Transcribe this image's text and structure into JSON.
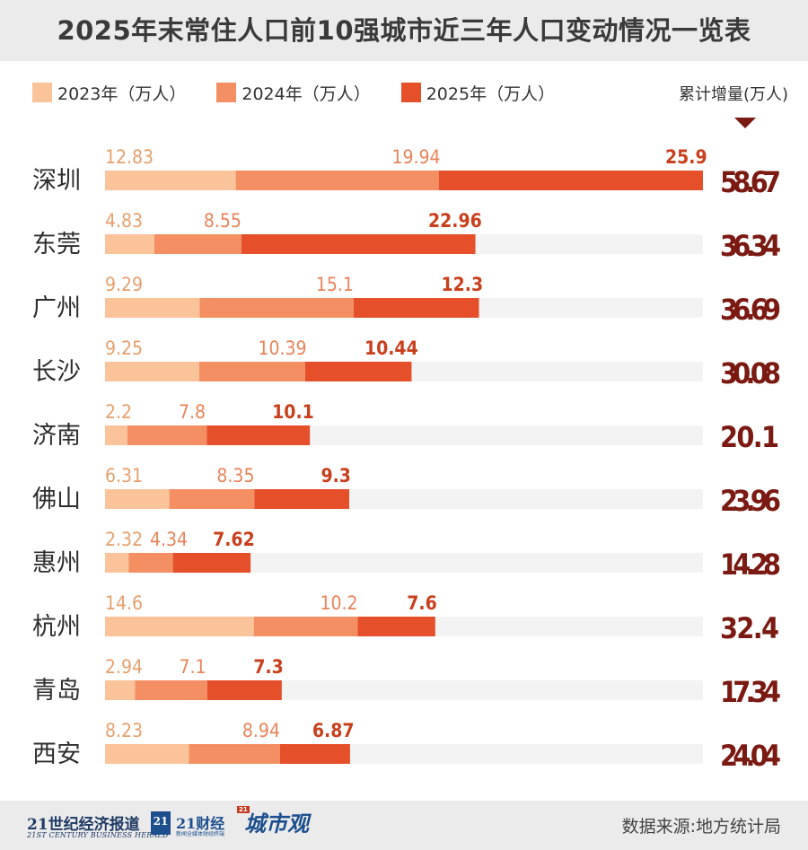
{
  "title": "2025年末常住人口前10强城市近三年人口变动情况一览表",
  "legend": [
    {
      "label": "2023年（万人）",
      "color": "#fbc39a"
    },
    {
      "label": "2024年（万人）",
      "color": "#f48f63"
    },
    {
      "label": "2025年（万人）",
      "color": "#e54f2a"
    }
  ],
  "cumulative_label": "累计增量(万人)",
  "colors": {
    "y2023": "#fbc39a",
    "y2024": "#f48f63",
    "y2025": "#e54f2a",
    "track": "#f3f3f3",
    "total": "#7a1a12",
    "label2023": "#e6a06e",
    "label2024": "#e8845a",
    "label2025": "#c8401e",
    "city": "#2e2e2e"
  },
  "chart_data": {
    "type": "bar",
    "orientation": "horizontal",
    "stacked": true,
    "categories": [
      "深圳",
      "东莞",
      "广州",
      "长沙",
      "济南",
      "佛山",
      "惠州",
      "杭州",
      "青岛",
      "西安"
    ],
    "series": [
      {
        "name": "2023年（万人）",
        "values": [
          12.83,
          4.83,
          9.29,
          9.25,
          2.2,
          6.31,
          2.32,
          14.6,
          2.94,
          8.23
        ]
      },
      {
        "name": "2024年（万人）",
        "values": [
          19.94,
          8.55,
          15.1,
          10.39,
          7.8,
          8.35,
          4.34,
          10.2,
          7.1,
          8.94
        ]
      },
      {
        "name": "2025年（万人）",
        "values": [
          25.9,
          22.96,
          12.3,
          10.44,
          10.1,
          9.3,
          7.62,
          7.6,
          7.3,
          6.87
        ]
      }
    ],
    "totals_label": "累计增量(万人)",
    "totals": [
      "58.67",
      "36.34",
      "36.69",
      "30.08",
      "20.1",
      "23.96",
      "14.28",
      "32.4",
      "17.34",
      "24.04"
    ],
    "xlim": [
      0,
      58.67
    ],
    "grid": false
  },
  "footer": {
    "brand1": "21世纪经济报道",
    "brand1_sub": "21ST CENTURY BUSINESS HERALD",
    "brand2_mark": "21",
    "brand2": "21财经",
    "brand2_sub": "新闻全媒体财经终端",
    "brand3_mark": "21",
    "brand3": "城市观",
    "source": "数据来源:地方统计局"
  }
}
